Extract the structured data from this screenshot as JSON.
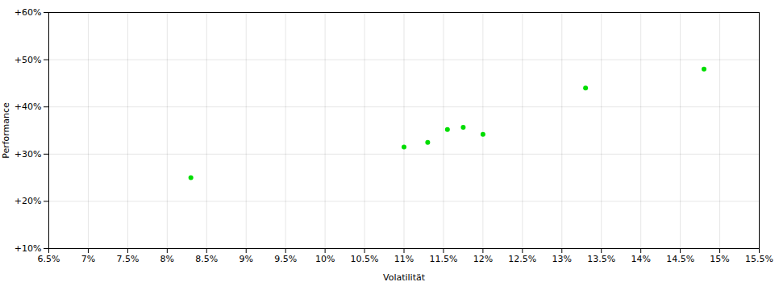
{
  "chart_data": {
    "type": "scatter",
    "xlabel": "Volatilität",
    "ylabel": "Performance",
    "x": [
      8.3,
      11.0,
      11.3,
      11.55,
      11.75,
      12.0,
      13.3,
      14.8
    ],
    "values": [
      25.0,
      31.5,
      32.5,
      35.2,
      35.7,
      34.2,
      44.0,
      48.0
    ],
    "color": "#00dd00",
    "xlim": [
      6.5,
      15.5
    ],
    "ylim": [
      10.0,
      60.0
    ],
    "xticks": [
      {
        "value": 6.5,
        "label": "6.5%"
      },
      {
        "value": 7.0,
        "label": "7%"
      },
      {
        "value": 7.5,
        "label": "7.5%"
      },
      {
        "value": 8.0,
        "label": "8%"
      },
      {
        "value": 8.5,
        "label": "8.5%"
      },
      {
        "value": 9.0,
        "label": "9%"
      },
      {
        "value": 9.5,
        "label": "9.5%"
      },
      {
        "value": 10.0,
        "label": "10%"
      },
      {
        "value": 10.5,
        "label": "10.5%"
      },
      {
        "value": 11.0,
        "label": "11%"
      },
      {
        "value": 11.5,
        "label": "11.5%"
      },
      {
        "value": 12.0,
        "label": "12%"
      },
      {
        "value": 12.5,
        "label": "12.5%"
      },
      {
        "value": 13.0,
        "label": "13%"
      },
      {
        "value": 13.5,
        "label": "13.5%"
      },
      {
        "value": 14.0,
        "label": "14%"
      },
      {
        "value": 14.5,
        "label": "14.5%"
      },
      {
        "value": 15.0,
        "label": "15%"
      },
      {
        "value": 15.5,
        "label": "15.5%"
      }
    ],
    "yticks": [
      {
        "value": 10,
        "label": "+10%"
      },
      {
        "value": 20,
        "label": "+20%"
      },
      {
        "value": 30,
        "label": "+30%"
      },
      {
        "value": 40,
        "label": "+40%"
      },
      {
        "value": 50,
        "label": "+50%"
      },
      {
        "value": 60,
        "label": "+60%"
      }
    ],
    "grid": true
  }
}
